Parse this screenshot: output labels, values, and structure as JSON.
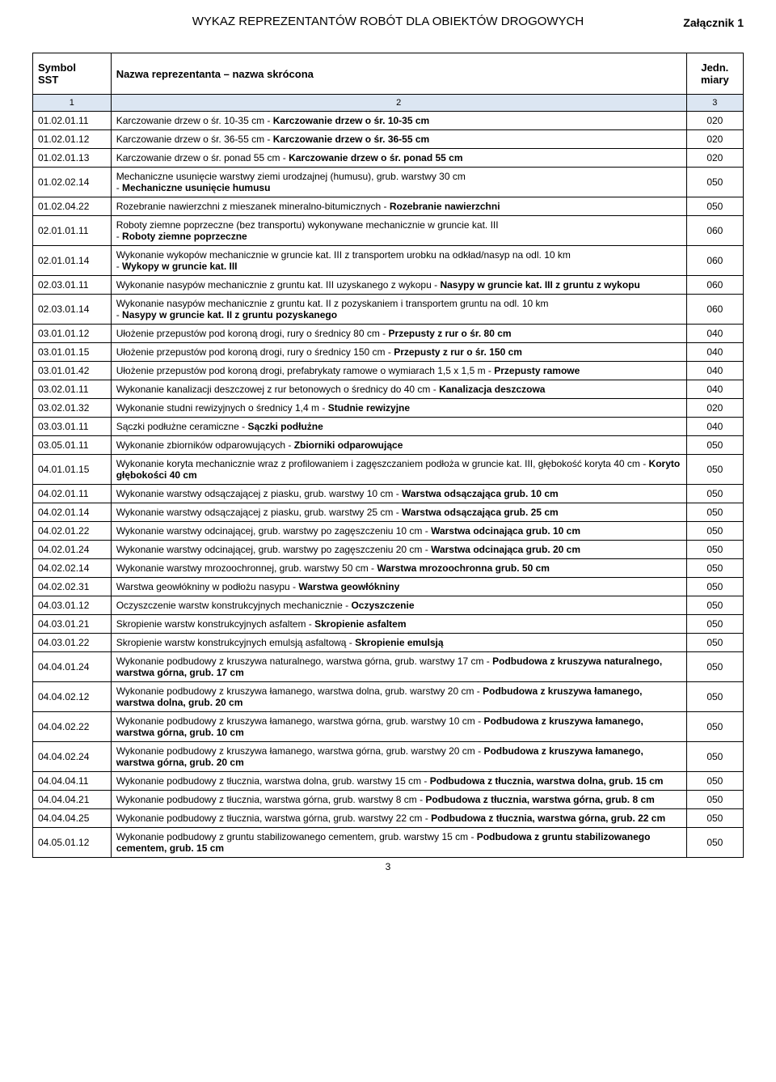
{
  "attachment": "Załącznik 1",
  "title": "WYKAZ REPREZENTANTÓW ROBÓT DLA OBIEKTÓW DROGOWYCH",
  "headers": {
    "c1": "Symbol\nSST",
    "c2": "Nazwa reprezentanta – nazwa skrócona",
    "c3": "Jedn.\nmiary"
  },
  "subheaders": {
    "c1": "1",
    "c2": "2",
    "c3": "3"
  },
  "rows": [
    {
      "sst": "01.02.01.11",
      "name": "Karczowanie drzew o śr. 10-35 cm - <b>Karczowanie drzew o śr. 10-35 cm</b>",
      "unit": "020"
    },
    {
      "sst": "01.02.01.12",
      "name": "Karczowanie drzew o śr. 36-55 cm - <b>Karczowanie drzew o śr. 36-55 cm</b>",
      "unit": "020"
    },
    {
      "sst": "01.02.01.13",
      "name": "Karczowanie drzew o śr. ponad 55 cm - <b>Karczowanie drzew o śr. ponad 55 cm</b>",
      "unit": "020"
    },
    {
      "sst": "01.02.02.14",
      "name": "Mechaniczne usunięcie warstwy ziemi urodzajnej (humusu), grub. warstwy 30 cm<br>- <b>Mechaniczne usunięcie humusu</b>",
      "unit": "050"
    },
    {
      "sst": "01.02.04.22",
      "name": "Rozebranie nawierzchni z mieszanek mineralno-bitumicznych - <b>Rozebranie nawierzchni</b>",
      "unit": "050"
    },
    {
      "sst": "02.01.01.11",
      "name": "Roboty ziemne poprzeczne (bez transportu) wykonywane mechanicznie w gruncie kat. III<br>- <b>Roboty ziemne poprzeczne</b>",
      "unit": "060"
    },
    {
      "sst": "02.01.01.14",
      "name": "Wykonanie wykopów mechanicznie w gruncie kat. III z transportem urobku na odkład/nasyp na odl. 10 km<br>- <b>Wykopy w gruncie kat. III</b>",
      "unit": "060"
    },
    {
      "sst": "02.03.01.11",
      "name": "Wykonanie nasypów mechanicznie z gruntu kat. III uzyskanego z wykopu - <b>Nasypy w gruncie kat. III z gruntu z wykopu</b>",
      "unit": "060"
    },
    {
      "sst": "02.03.01.14",
      "name": "Wykonanie nasypów mechanicznie z gruntu kat. II z pozyskaniem i transportem gruntu na odl. 10 km<br>- <b>Nasypy w gruncie kat. II z gruntu pozyskanego</b>",
      "unit": "060"
    },
    {
      "sst": "03.01.01.12",
      "name": "Ułożenie przepustów pod koroną drogi, rury o średnicy 80 cm - <b>Przepusty z rur o śr. 80 cm</b>",
      "unit": "040"
    },
    {
      "sst": "03.01.01.15",
      "name": "Ułożenie przepustów pod koroną drogi, rury o średnicy 150 cm - <b>Przepusty z rur o śr. 150 cm</b>",
      "unit": "040"
    },
    {
      "sst": "03.01.01.42",
      "name": "Ułożenie przepustów pod koroną drogi, prefabrykaty ramowe o wymiarach 1,5 x 1,5 m - <b>Przepusty ramowe</b>",
      "unit": "040"
    },
    {
      "sst": "03.02.01.11",
      "name": "Wykonanie kanalizacji deszczowej z rur betonowych o średnicy do 40 cm - <b>Kanalizacja deszczowa</b>",
      "unit": "040"
    },
    {
      "sst": "03.02.01.32",
      "name": "Wykonanie studni rewizyjnych o średnicy 1,4 m - <b>Studnie rewizyjne</b>",
      "unit": "020"
    },
    {
      "sst": "03.03.01.11",
      "name": "Sączki podłużne ceramiczne - <b>Sączki podłużne</b>",
      "unit": "040"
    },
    {
      "sst": "03.05.01.11",
      "name": "Wykonanie zbiorników odparowujących - <b>Zbiorniki odparowujące</b>",
      "unit": "050"
    },
    {
      "sst": "04.01.01.15",
      "name": "Wykonanie koryta mechanicznie wraz z profilowaniem i zagęszczaniem podłoża w gruncie kat. III, głębokość koryta 40 cm - <b>Koryto głębokości 40 cm</b>",
      "unit": "050"
    },
    {
      "sst": "04.02.01.11",
      "name": "Wykonanie warstwy odsączającej z piasku, grub. warstwy 10 cm - <b>Warstwa odsączająca grub. 10 cm</b>",
      "unit": "050"
    },
    {
      "sst": "04.02.01.14",
      "name": "Wykonanie warstwy odsączającej z piasku, grub. warstwy 25 cm - <b>Warstwa odsączająca grub. 25 cm</b>",
      "unit": "050"
    },
    {
      "sst": "04.02.01.22",
      "name": "Wykonanie warstwy odcinającej, grub. warstwy po zagęszczeniu 10 cm - <b>Warstwa odcinająca grub. 10 cm</b>",
      "unit": "050"
    },
    {
      "sst": "04.02.01.24",
      "name": "Wykonanie warstwy odcinającej, grub. warstwy po zagęszczeniu 20 cm - <b>Warstwa odcinająca grub. 20 cm</b>",
      "unit": "050"
    },
    {
      "sst": "04.02.02.14",
      "name": "Wykonanie warstwy mrozoochronnej, grub. warstwy 50 cm - <b>Warstwa mrozoochronna grub. 50 cm</b>",
      "unit": "050"
    },
    {
      "sst": "04.02.02.31",
      "name": "Warstwa geowłókniny w podłożu nasypu - <b>Warstwa geowłókniny</b>",
      "unit": "050"
    },
    {
      "sst": "04.03.01.12",
      "name": "Oczyszczenie warstw konstrukcyjnych mechanicznie - <b>Oczyszczenie</b>",
      "unit": "050"
    },
    {
      "sst": "04.03.01.21",
      "name": "Skropienie warstw konstrukcyjnych asfaltem - <b>Skropienie asfaltem</b>",
      "unit": "050"
    },
    {
      "sst": "04.03.01.22",
      "name": "Skropienie warstw konstrukcyjnych emulsją asfaltową - <b>Skropienie emulsją</b>",
      "unit": "050"
    },
    {
      "sst": "04.04.01.24",
      "name": "Wykonanie podbudowy z kruszywa naturalnego, warstwa górna, grub. warstwy 17 cm - <b>Podbudowa z kruszywa naturalnego, warstwa górna, grub. 17 cm</b>",
      "unit": "050"
    },
    {
      "sst": "04.04.02.12",
      "name": "Wykonanie podbudowy z kruszywa łamanego, warstwa dolna, grub. warstwy 20 cm - <b>Podbudowa z kruszywa łamanego, warstwa dolna, grub. 20 cm</b>",
      "unit": "050"
    },
    {
      "sst": "04.04.02.22",
      "name": "Wykonanie podbudowy z kruszywa łamanego, warstwa górna, grub. warstwy 10 cm - <b>Podbudowa z kruszywa łamanego, warstwa górna, grub. 10 cm</b>",
      "unit": "050"
    },
    {
      "sst": "04.04.02.24",
      "name": "Wykonanie podbudowy z kruszywa łamanego, warstwa górna, grub. warstwy 20 cm - <b>Podbudowa z kruszywa łamanego, warstwa górna, grub. 20 cm</b>",
      "unit": "050"
    },
    {
      "sst": "04.04.04.11",
      "name": "Wykonanie podbudowy z tłucznia, warstwa dolna, grub. warstwy 15 cm - <b>Podbudowa z tłucznia, warstwa dolna, grub. 15 cm</b>",
      "unit": "050"
    },
    {
      "sst": "04.04.04.21",
      "name": "Wykonanie podbudowy z tłucznia, warstwa górna, grub. warstwy 8 cm - <b>Podbudowa z tłucznia, warstwa górna, grub. 8 cm</b>",
      "unit": "050"
    },
    {
      "sst": "04.04.04.25",
      "name": "Wykonanie podbudowy z tłucznia, warstwa górna, grub. warstwy 22 cm - <b>Podbudowa z tłucznia, warstwa górna, grub. 22 cm</b>",
      "unit": "050"
    },
    {
      "sst": "04.05.01.12",
      "name": "Wykonanie podbudowy z gruntu stabilizowanego cementem, grub. warstwy 15 cm - <b>Podbudowa z gruntu stabilizowanego cementem, grub. 15 cm</b>",
      "unit": "050"
    }
  ],
  "page_number": "3",
  "style": {
    "subheader_bg": "#dce6f2",
    "border_color": "#000000",
    "font_family": "Arial"
  }
}
